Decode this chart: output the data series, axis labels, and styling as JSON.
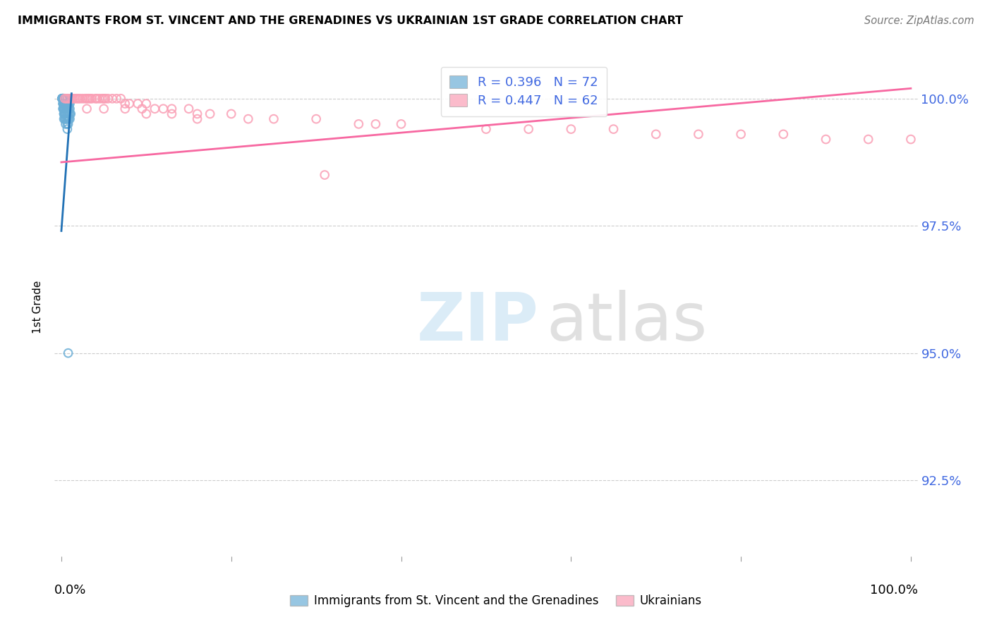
{
  "title": "IMMIGRANTS FROM ST. VINCENT AND THE GRENADINES VS UKRAINIAN 1ST GRADE CORRELATION CHART",
  "source": "Source: ZipAtlas.com",
  "ylabel": "1st Grade",
  "ytick_labels": [
    "100.0%",
    "97.5%",
    "95.0%",
    "92.5%"
  ],
  "ytick_values": [
    1.0,
    0.975,
    0.95,
    0.925
  ],
  "xlim": [
    0.0,
    1.0
  ],
  "ylim": [
    0.91,
    1.008
  ],
  "legend_r_blue": "R = 0.396",
  "legend_n_blue": "N = 72",
  "legend_r_pink": "R = 0.447",
  "legend_n_pink": "N = 62",
  "blue_color": "#6baed6",
  "pink_color": "#fa9fb5",
  "blue_line_color": "#2171b5",
  "pink_line_color": "#f768a1",
  "blue_scatter_x": [
    0.001,
    0.001,
    0.001,
    0.001,
    0.001,
    0.001,
    0.001,
    0.001,
    0.001,
    0.001,
    0.002,
    0.002,
    0.002,
    0.002,
    0.002,
    0.002,
    0.002,
    0.002,
    0.002,
    0.002,
    0.002,
    0.002,
    0.002,
    0.003,
    0.003,
    0.003,
    0.003,
    0.003,
    0.003,
    0.003,
    0.003,
    0.003,
    0.004,
    0.004,
    0.004,
    0.004,
    0.004,
    0.004,
    0.004,
    0.005,
    0.005,
    0.005,
    0.005,
    0.005,
    0.005,
    0.006,
    0.006,
    0.006,
    0.006,
    0.006,
    0.007,
    0.007,
    0.007,
    0.007,
    0.007,
    0.007,
    0.007,
    0.008,
    0.008,
    0.008,
    0.008,
    0.008,
    0.009,
    0.009,
    0.009,
    0.009,
    0.01,
    0.01,
    0.01,
    0.01,
    0.011,
    0.008
  ],
  "blue_scatter_y": [
    1.0,
    1.0,
    1.0,
    1.0,
    1.0,
    1.0,
    1.0,
    1.0,
    1.0,
    1.0,
    1.0,
    1.0,
    1.0,
    1.0,
    1.0,
    1.0,
    1.0,
    1.0,
    0.999,
    0.999,
    0.999,
    0.998,
    0.998,
    1.0,
    1.0,
    0.999,
    0.999,
    0.998,
    0.998,
    0.997,
    0.997,
    0.996,
    1.0,
    0.999,
    0.999,
    0.998,
    0.997,
    0.997,
    0.996,
    1.0,
    0.999,
    0.998,
    0.997,
    0.996,
    0.995,
    0.999,
    0.998,
    0.998,
    0.997,
    0.996,
    1.0,
    0.999,
    0.998,
    0.997,
    0.996,
    0.995,
    0.994,
    0.999,
    0.998,
    0.997,
    0.996,
    0.995,
    0.999,
    0.998,
    0.997,
    0.996,
    0.999,
    0.998,
    0.997,
    0.996,
    0.997,
    0.95
  ],
  "pink_scatter_x": [
    0.004,
    0.006,
    0.008,
    0.01,
    0.012,
    0.014,
    0.016,
    0.018,
    0.02,
    0.022,
    0.025,
    0.028,
    0.03,
    0.032,
    0.034,
    0.036,
    0.04,
    0.042,
    0.045,
    0.048,
    0.05,
    0.052,
    0.055,
    0.06,
    0.065,
    0.07,
    0.075,
    0.08,
    0.09,
    0.095,
    0.1,
    0.11,
    0.12,
    0.13,
    0.15,
    0.16,
    0.175,
    0.2,
    0.22,
    0.25,
    0.3,
    0.31,
    0.35,
    0.37,
    0.4,
    0.5,
    0.55,
    0.6,
    0.65,
    0.7,
    0.75,
    0.8,
    0.85,
    0.9,
    0.95,
    1.0,
    0.03,
    0.05,
    0.075,
    0.1,
    0.13,
    0.16
  ],
  "pink_scatter_y": [
    1.0,
    1.0,
    1.0,
    1.0,
    1.0,
    1.0,
    1.0,
    1.0,
    1.0,
    1.0,
    1.0,
    1.0,
    1.0,
    1.0,
    1.0,
    1.0,
    1.0,
    1.0,
    1.0,
    1.0,
    1.0,
    1.0,
    1.0,
    1.0,
    1.0,
    1.0,
    0.999,
    0.999,
    0.999,
    0.998,
    0.999,
    0.998,
    0.998,
    0.998,
    0.998,
    0.997,
    0.997,
    0.997,
    0.996,
    0.996,
    0.996,
    0.985,
    0.995,
    0.995,
    0.995,
    0.994,
    0.994,
    0.994,
    0.994,
    0.993,
    0.993,
    0.993,
    0.993,
    0.992,
    0.992,
    0.992,
    0.998,
    0.998,
    0.998,
    0.997,
    0.997,
    0.996
  ],
  "blue_trend_x0": 0.0,
  "blue_trend_x1": 0.012,
  "blue_trend_y0": 0.974,
  "blue_trend_y1": 1.001,
  "pink_trend_x0": 0.0,
  "pink_trend_x1": 1.0,
  "pink_trend_y0": 0.9875,
  "pink_trend_y1": 1.002
}
